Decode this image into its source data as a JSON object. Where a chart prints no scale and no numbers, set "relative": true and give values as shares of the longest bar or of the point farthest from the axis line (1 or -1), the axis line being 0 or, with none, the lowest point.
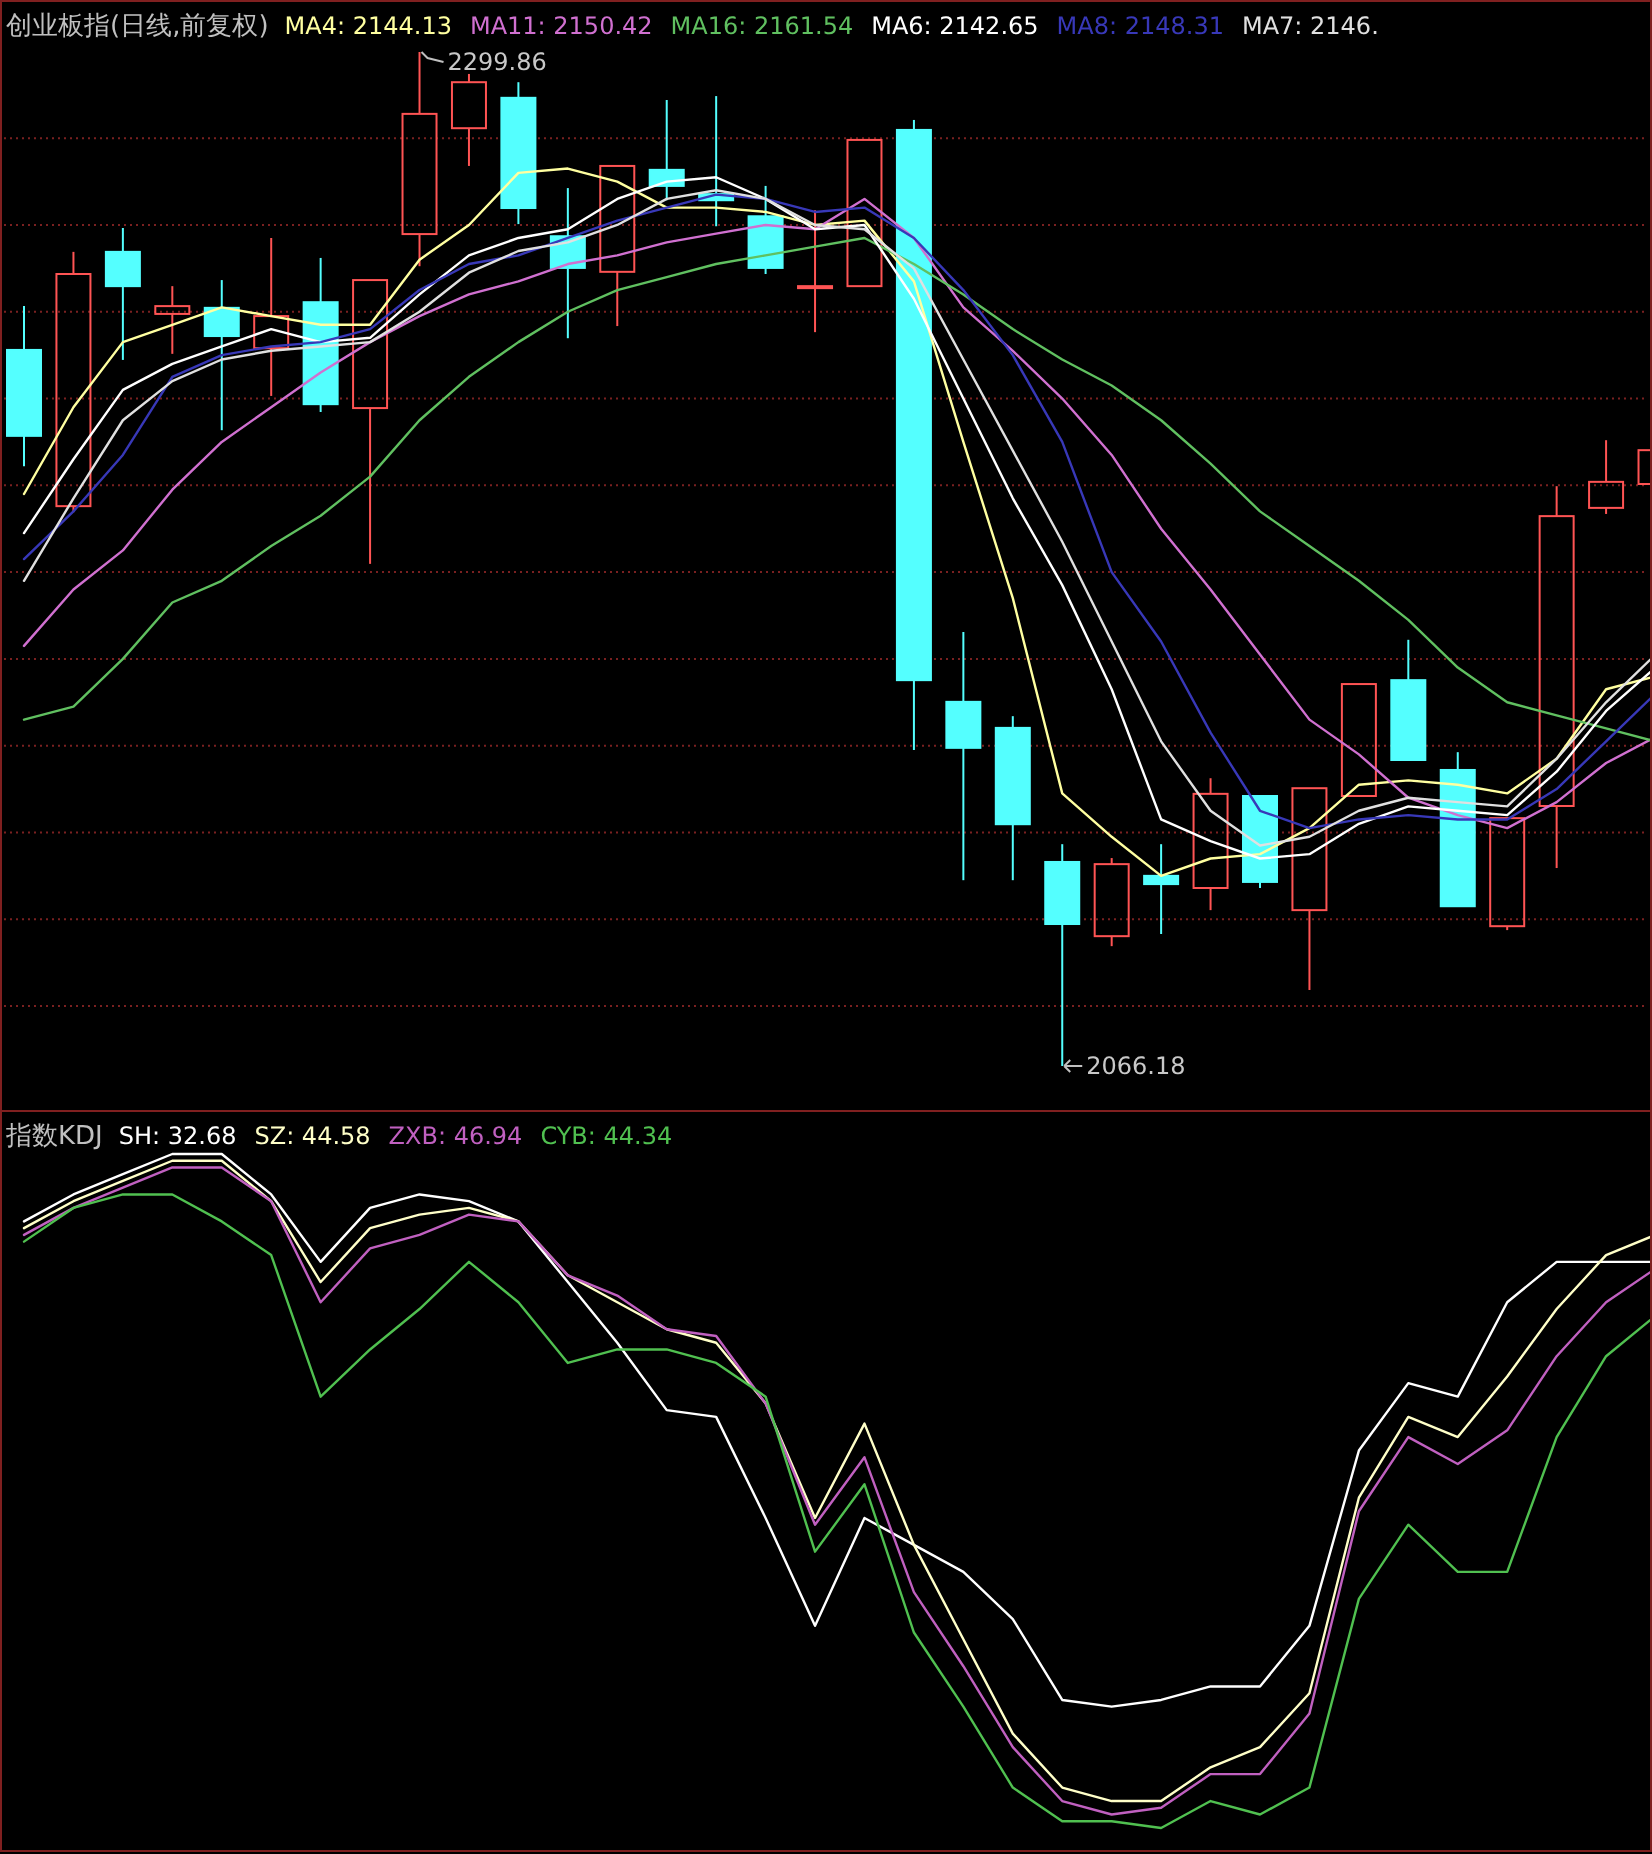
{
  "chart_data": [
    {
      "type": "candlestick",
      "title": "创业板指(日线,前复权)",
      "categories": [
        null,
        null,
        null,
        null,
        null,
        null,
        null,
        null,
        null,
        null,
        null,
        null,
        null,
        null,
        null,
        null,
        null,
        null,
        null,
        null,
        null,
        null,
        null,
        null,
        null,
        null,
        null,
        null,
        null,
        null,
        null,
        null,
        null,
        null
      ],
      "ohlc": [
        [
          2231.2,
          2241.3,
          2204.4,
          2211.4
        ],
        [
          2195.2,
          2253.8,
          2193.8,
          2248.7
        ],
        [
          2253.8,
          2259.3,
          2228.9,
          2245.9
        ],
        [
          2239.5,
          2245.9,
          2230.3,
          2241.3
        ],
        [
          2240.9,
          2247.3,
          2212.7,
          2234.4
        ],
        [
          2231.6,
          2257.0,
          2220.6,
          2239.0
        ],
        [
          2242.2,
          2252.4,
          2216.9,
          2218.7
        ],
        [
          2217.8,
          2247.3,
          2181.9,
          2247.3
        ],
        [
          2257.9,
          2299.86,
          2250.5,
          2285.6
        ],
        [
          2282.3,
          2294.8,
          2273.6,
          2292.9
        ],
        [
          2289.3,
          2292.9,
          2260.2,
          2263.9
        ],
        [
          2257.4,
          2268.5,
          2233.9,
          2250.1
        ],
        [
          2249.2,
          2273.6,
          2236.7,
          2273.6
        ],
        [
          2272.7,
          2288.8,
          2265.7,
          2269.0
        ],
        [
          2267.1,
          2289.7,
          2259.7,
          2265.7
        ],
        [
          2262.0,
          2269.0,
          2248.7,
          2250.1
        ],
        [
          2245.5,
          2263.4,
          2235.3,
          2245.9
        ],
        [
          2245.9,
          2279.6,
          2245.9,
          2279.6
        ],
        [
          2281.9,
          2284.2,
          2139.0,
          2155.1
        ],
        [
          2150.1,
          2166.2,
          2109.0,
          2139.5
        ],
        [
          2144.1,
          2146.8,
          2109.0,
          2121.9
        ],
        [
          2113.2,
          2117.3,
          2066.18,
          2098.9
        ],
        [
          2096.1,
          2114.1,
          2093.8,
          2112.7
        ],
        [
          2110.0,
          2117.3,
          2096.6,
          2108.1
        ],
        [
          2107.2,
          2132.5,
          2102.1,
          2128.9
        ],
        [
          2128.4,
          2128.4,
          2107.2,
          2108.6
        ],
        [
          2102.1,
          2130.2,
          2083.7,
          2130.2
        ],
        [
          2128.4,
          2154.2,
          2128.4,
          2154.2
        ],
        [
          2155.1,
          2164.4,
          2136.7,
          2136.7
        ],
        [
          2134.4,
          2138.5,
          2103.0,
          2103.0
        ],
        [
          2098.4,
          2123.3,
          2097.5,
          2123.3
        ],
        [
          2126.1,
          2199.8,
          2111.8,
          2192.9
        ],
        [
          2194.8,
          2210.4,
          2193.4,
          2200.8
        ],
        [
          2200.3,
          2208.1,
          2200.3,
          2208.1
        ]
      ],
      "colors": [
        "#54ffff",
        "#ff5454",
        "#54ffff",
        "#ff5454",
        "#54ffff",
        "#ff5454",
        "#54ffff",
        "#ff5454",
        "#ff5454",
        "#ff5454",
        "#54ffff",
        "#54ffff",
        "#ff5454",
        "#54ffff",
        "#54ffff",
        "#54ffff",
        "#ff5454",
        "#ff5454",
        "#54ffff",
        "#54ffff",
        "#54ffff",
        "#54ffff",
        "#ff5454",
        "#54ffff",
        "#ff5454",
        "#54ffff",
        "#ff5454",
        "#ff5454",
        "#54ffff",
        "#54ffff",
        "#ff5454",
        "#ff5454",
        "#ff5454",
        "#ff5454"
      ],
      "series": [
        {
          "name": "MA4: 2144.13",
          "type": "line",
          "color": "#ffffa0",
          "values": [
            2198,
            2218,
            2233,
            2237,
            2241,
            2239,
            2237,
            2237,
            2252,
            2260,
            2272,
            2273,
            2270,
            2264,
            2264,
            2263,
            2260,
            2261,
            2247,
            2210,
            2174,
            2129,
            2119,
            2110,
            2114,
            2115,
            2121,
            2131,
            2132,
            2131,
            2129,
            2137,
            2153,
            2156
          ]
        },
        {
          "name": "MA11: 2150.42",
          "type": "line",
          "color": "#d070d0",
          "values": [
            2163,
            2176,
            2185,
            2199,
            2210,
            2218,
            2226,
            2233,
            2239,
            2244,
            2247,
            2251,
            2253,
            2256,
            2258,
            2260,
            2259,
            2266,
            2257,
            2241,
            2231,
            2220,
            2207,
            2190,
            2176,
            2161,
            2146,
            2138,
            2128,
            2124,
            2121,
            2127,
            2136,
            2142
          ]
        },
        {
          "name": "MA16: 2161.54",
          "type": "line",
          "color": "#60c060",
          "values": [
            2146,
            2149,
            2160,
            2173,
            2178,
            2186,
            2193,
            2202,
            2215,
            2225,
            2233,
            2240,
            2245,
            2248,
            2251,
            2253,
            2255,
            2257,
            2251,
            2244,
            2236,
            2229,
            2223,
            2215,
            2205,
            2194,
            2186,
            2178,
            2169,
            2158,
            2150,
            2147,
            2144,
            2141
          ]
        },
        {
          "name": "MA6: 2142.65",
          "type": "line",
          "color": "#ffffff",
          "values": [
            2189,
            2206,
            2222,
            2228,
            2232,
            2236,
            2233,
            2234,
            2244,
            2253,
            2257,
            2259,
            2266,
            2270,
            2271,
            2266,
            2259,
            2260,
            2243,
            2220,
            2197,
            2177,
            2153,
            2123,
            2118,
            2114,
            2115,
            2122,
            2126,
            2125,
            2124,
            2134,
            2148,
            2158
          ]
        },
        {
          "name": "MA8: 2148.31",
          "type": "line",
          "color": "#3838b8",
          "values": [
            2183,
            2194,
            2207,
            2225,
            2230,
            2232,
            2233,
            2236,
            2245,
            2251,
            2253,
            2257,
            2261,
            2264,
            2267,
            2266,
            2263,
            2264,
            2257,
            2245,
            2230,
            2210,
            2180,
            2164,
            2143,
            2125,
            2121,
            2123,
            2124,
            2123,
            2123,
            2130,
            2141,
            2152
          ]
        },
        {
          "name": "MA7: 2146.",
          "type": "line",
          "color": "#e0e0e0",
          "values": [
            2178,
            2197,
            2215,
            2224,
            2229,
            2231,
            2232,
            2233,
            2240,
            2249,
            2254,
            2256,
            2260,
            2266,
            2268,
            2266,
            2260,
            2259,
            2250,
            2229,
            2208,
            2187,
            2164,
            2141,
            2125,
            2117,
            2119,
            2125,
            2128,
            2127,
            2126,
            2137,
            2150,
            2161
          ]
        }
      ],
      "annotations": [
        "2299.86",
        "2066.18"
      ],
      "yticks": [
        {
          "value": 2280,
          "label": null
        },
        {
          "value": 2260,
          "label": null
        },
        {
          "value": 2240,
          "label": null
        },
        {
          "value": 2220,
          "label": null
        },
        {
          "value": 2200,
          "label": null
        },
        {
          "value": 2180,
          "label": null
        },
        {
          "value": 2160,
          "label": null
        },
        {
          "value": 2140,
          "label": null
        },
        {
          "value": 2120,
          "label": null
        },
        {
          "value": 2100,
          "label": null
        },
        {
          "value": 2080,
          "label": null
        }
      ],
      "grid": "y",
      "legend": "top"
    },
    {
      "type": "line",
      "title": "指数KDJ",
      "relative": true,
      "categories": [
        null,
        null,
        null,
        null,
        null,
        null,
        null,
        null,
        null,
        null,
        null,
        null,
        null,
        null,
        null,
        null,
        null,
        null,
        null,
        null,
        null,
        null,
        null,
        null,
        null,
        null,
        null,
        null,
        null,
        null,
        null,
        null,
        null,
        null
      ],
      "series": [
        {
          "name": "SH: 32.68",
          "color": "#ffffff",
          "values": [
            0.9,
            0.94,
            0.97,
            1.0,
            1.0,
            0.94,
            0.84,
            0.92,
            0.94,
            0.93,
            0.9,
            0.81,
            0.72,
            0.62,
            0.61,
            0.46,
            0.3,
            0.46,
            0.42,
            0.38,
            0.31,
            0.19,
            0.18,
            0.19,
            0.21,
            0.21,
            0.3,
            0.56,
            0.66,
            0.64,
            0.78,
            0.84,
            0.84,
            0.84
          ]
        },
        {
          "name": "SZ: 44.58",
          "color": "#ffffc8",
          "values": [
            0.89,
            0.93,
            0.96,
            0.99,
            0.99,
            0.93,
            0.81,
            0.89,
            0.91,
            0.92,
            0.9,
            0.82,
            0.78,
            0.74,
            0.72,
            0.63,
            0.46,
            0.6,
            0.42,
            0.28,
            0.14,
            0.06,
            0.04,
            0.04,
            0.09,
            0.12,
            0.2,
            0.49,
            0.61,
            0.58,
            0.67,
            0.77,
            0.85,
            0.88
          ]
        },
        {
          "name": "ZXB: 46.94",
          "color": "#c060c0",
          "values": [
            0.88,
            0.92,
            0.95,
            0.98,
            0.98,
            0.93,
            0.78,
            0.86,
            0.88,
            0.91,
            0.9,
            0.82,
            0.79,
            0.74,
            0.73,
            0.63,
            0.45,
            0.55,
            0.35,
            0.24,
            0.12,
            0.04,
            0.02,
            0.03,
            0.08,
            0.08,
            0.17,
            0.47,
            0.58,
            0.54,
            0.59,
            0.7,
            0.78,
            0.83
          ]
        },
        {
          "name": "CYB: 44.34",
          "color": "#50c050",
          "values": [
            0.87,
            0.92,
            0.94,
            0.94,
            0.9,
            0.85,
            0.64,
            0.71,
            0.77,
            0.84,
            0.78,
            0.69,
            0.71,
            0.71,
            0.69,
            0.64,
            0.41,
            0.51,
            0.29,
            0.18,
            0.06,
            0.01,
            0.01,
            0,
            0.04,
            0.02,
            0.06,
            0.34,
            0.45,
            0.38,
            0.38,
            0.58,
            0.7,
            0.76
          ]
        }
      ],
      "legend": "top"
    }
  ]
}
